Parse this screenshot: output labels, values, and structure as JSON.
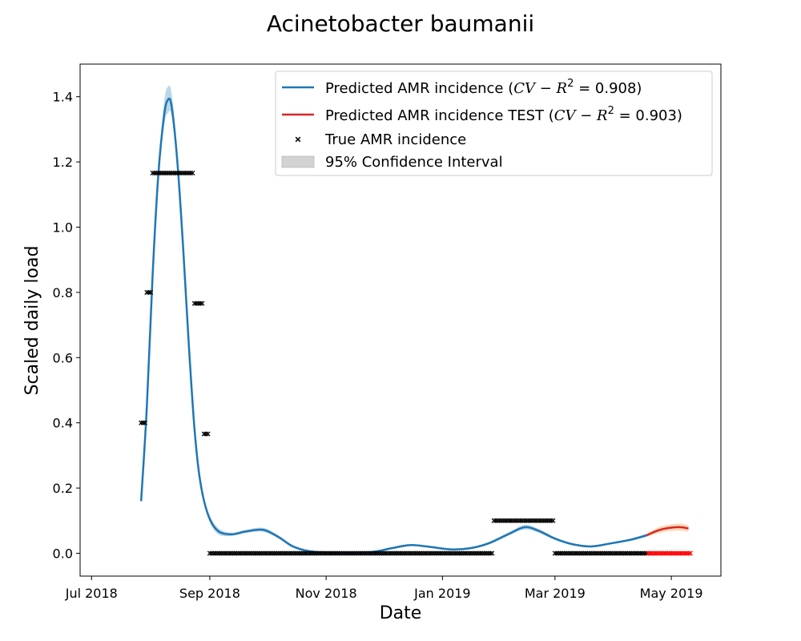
{
  "chart_data": {
    "type": "line",
    "title": "Acinetobacter baumanii",
    "xlabel": "Date",
    "ylabel": "Scaled daily load",
    "xlim": [
      "2018-06-25",
      "2019-05-27"
    ],
    "ylim": [
      -0.07,
      1.5
    ],
    "x_ticks": [
      {
        "date": "2018-07-01",
        "label": "Jul 2018"
      },
      {
        "date": "2018-09-01",
        "label": "Sep 2018"
      },
      {
        "date": "2018-11-01",
        "label": "Nov 2018"
      },
      {
        "date": "2019-01-01",
        "label": "Jan 2019"
      },
      {
        "date": "2019-03-01",
        "label": "Mar 2019"
      },
      {
        "date": "2019-05-01",
        "label": "May 2019"
      }
    ],
    "y_ticks": [
      0.0,
      0.2,
      0.4,
      0.6,
      0.8,
      1.0,
      1.2,
      1.4
    ],
    "y_tick_labels": [
      "0.0",
      "0.2",
      "0.4",
      "0.6",
      "0.8",
      "1.0",
      "1.2",
      "1.4"
    ],
    "legend": {
      "position": "top-right",
      "entries": [
        {
          "key": "pred",
          "label_pre": "Predicted AMR incidence (",
          "label_math": "CV − R",
          "label_sup": "2",
          "label_post": " = 0.908)",
          "color": "#1f77b4",
          "marker": "line"
        },
        {
          "key": "test",
          "label_pre": "Predicted AMR incidence TEST (",
          "label_math": "CV − R",
          "label_sup": "2",
          "label_post": " = 0.903)",
          "color": "#d62728",
          "marker": "line"
        },
        {
          "key": "true",
          "label": "True AMR incidence",
          "color": "#000000",
          "marker": "x"
        },
        {
          "key": "ci",
          "label": "95% Confidence Interval",
          "color": "#d3d3d3",
          "marker": "patch"
        }
      ]
    },
    "series": [
      {
        "name": "Predicted AMR incidence",
        "color": "#1f77b4",
        "band_color": "#1f77b4",
        "points": [
          {
            "x": "2018-07-27",
            "y": 0.16,
            "lo": 0.15,
            "hi": 0.17
          },
          {
            "x": "2018-07-30",
            "y": 0.45,
            "lo": 0.44,
            "hi": 0.46
          },
          {
            "x": "2018-08-02",
            "y": 0.85,
            "lo": 0.84,
            "hi": 0.86
          },
          {
            "x": "2018-08-05",
            "y": 1.16,
            "lo": 1.14,
            "hi": 1.18
          },
          {
            "x": "2018-08-08",
            "y": 1.34,
            "lo": 1.31,
            "hi": 1.38
          },
          {
            "x": "2018-08-10",
            "y": 1.39,
            "lo": 1.35,
            "hi": 1.43
          },
          {
            "x": "2018-08-12",
            "y": 1.37,
            "lo": 1.34,
            "hi": 1.41
          },
          {
            "x": "2018-08-15",
            "y": 1.2,
            "lo": 1.18,
            "hi": 1.23
          },
          {
            "x": "2018-08-18",
            "y": 0.94,
            "lo": 0.92,
            "hi": 0.96
          },
          {
            "x": "2018-08-21",
            "y": 0.64,
            "lo": 0.62,
            "hi": 0.66
          },
          {
            "x": "2018-08-24",
            "y": 0.38,
            "lo": 0.37,
            "hi": 0.39
          },
          {
            "x": "2018-08-27",
            "y": 0.22,
            "lo": 0.21,
            "hi": 0.23
          },
          {
            "x": "2018-08-31",
            "y": 0.12,
            "lo": 0.11,
            "hi": 0.13
          },
          {
            "x": "2018-09-05",
            "y": 0.07,
            "lo": 0.06,
            "hi": 0.08
          },
          {
            "x": "2018-09-12",
            "y": 0.058,
            "lo": 0.053,
            "hi": 0.063
          },
          {
            "x": "2018-09-20",
            "y": 0.067,
            "lo": 0.062,
            "hi": 0.072
          },
          {
            "x": "2018-09-29",
            "y": 0.072,
            "lo": 0.066,
            "hi": 0.078
          },
          {
            "x": "2018-10-07",
            "y": 0.05,
            "lo": 0.045,
            "hi": 0.055
          },
          {
            "x": "2018-10-15",
            "y": 0.02,
            "lo": 0.016,
            "hi": 0.024
          },
          {
            "x": "2018-10-25",
            "y": 0.005,
            "lo": 0.002,
            "hi": 0.008
          },
          {
            "x": "2018-11-10",
            "y": 0.002,
            "lo": 0.0,
            "hi": 0.005
          },
          {
            "x": "2018-11-25",
            "y": 0.004,
            "lo": 0.001,
            "hi": 0.007
          },
          {
            "x": "2018-12-05",
            "y": 0.015,
            "lo": 0.012,
            "hi": 0.018
          },
          {
            "x": "2018-12-15",
            "y": 0.025,
            "lo": 0.022,
            "hi": 0.028
          },
          {
            "x": "2018-12-25",
            "y": 0.02,
            "lo": 0.017,
            "hi": 0.023
          },
          {
            "x": "2019-01-05",
            "y": 0.012,
            "lo": 0.009,
            "hi": 0.015
          },
          {
            "x": "2019-01-15",
            "y": 0.015,
            "lo": 0.012,
            "hi": 0.018
          },
          {
            "x": "2019-01-25",
            "y": 0.03,
            "lo": 0.026,
            "hi": 0.034
          },
          {
            "x": "2019-02-05",
            "y": 0.06,
            "lo": 0.055,
            "hi": 0.065
          },
          {
            "x": "2019-02-13",
            "y": 0.08,
            "lo": 0.073,
            "hi": 0.087
          },
          {
            "x": "2019-02-20",
            "y": 0.07,
            "lo": 0.064,
            "hi": 0.076
          },
          {
            "x": "2019-03-01",
            "y": 0.045,
            "lo": 0.041,
            "hi": 0.049
          },
          {
            "x": "2019-03-10",
            "y": 0.028,
            "lo": 0.025,
            "hi": 0.031
          },
          {
            "x": "2019-03-20",
            "y": 0.021,
            "lo": 0.018,
            "hi": 0.024
          },
          {
            "x": "2019-03-30",
            "y": 0.03,
            "lo": 0.027,
            "hi": 0.033
          },
          {
            "x": "2019-04-10",
            "y": 0.042,
            "lo": 0.038,
            "hi": 0.046
          },
          {
            "x": "2019-04-18",
            "y": 0.055,
            "lo": 0.05,
            "hi": 0.06
          }
        ]
      },
      {
        "name": "Predicted AMR incidence TEST",
        "color": "#d62728",
        "band_color": "#ff7f0e",
        "points": [
          {
            "x": "2019-04-18",
            "y": 0.055,
            "lo": 0.05,
            "hi": 0.06
          },
          {
            "x": "2019-04-24",
            "y": 0.07,
            "lo": 0.061,
            "hi": 0.079
          },
          {
            "x": "2019-04-30",
            "y": 0.078,
            "lo": 0.068,
            "hi": 0.088
          },
          {
            "x": "2019-05-06",
            "y": 0.08,
            "lo": 0.069,
            "hi": 0.091
          },
          {
            "x": "2019-05-10",
            "y": 0.076,
            "lo": 0.066,
            "hi": 0.086
          }
        ]
      }
    ],
    "true_segments": [
      {
        "start": "2018-07-27",
        "end": "2018-07-29",
        "y": 0.4,
        "color": "#000000"
      },
      {
        "start": "2018-07-30",
        "end": "2018-08-01",
        "y": 0.8,
        "color": "#000000"
      },
      {
        "start": "2018-08-02",
        "end": "2018-08-23",
        "y": 1.166,
        "color": "#000000"
      },
      {
        "start": "2018-08-24",
        "end": "2018-08-28",
        "y": 0.766,
        "color": "#000000"
      },
      {
        "start": "2018-08-29",
        "end": "2018-08-31",
        "y": 0.366,
        "color": "#000000"
      },
      {
        "start": "2018-09-01",
        "end": "2019-01-27",
        "y": 0.0,
        "color": "#000000"
      },
      {
        "start": "2019-01-28",
        "end": "2019-02-28",
        "y": 0.1,
        "color": "#000000"
      },
      {
        "start": "2019-03-01",
        "end": "2019-04-18",
        "y": 0.0,
        "color": "#000000"
      },
      {
        "start": "2019-04-19",
        "end": "2019-05-11",
        "y": 0.0,
        "color": "#ff0000"
      }
    ]
  }
}
